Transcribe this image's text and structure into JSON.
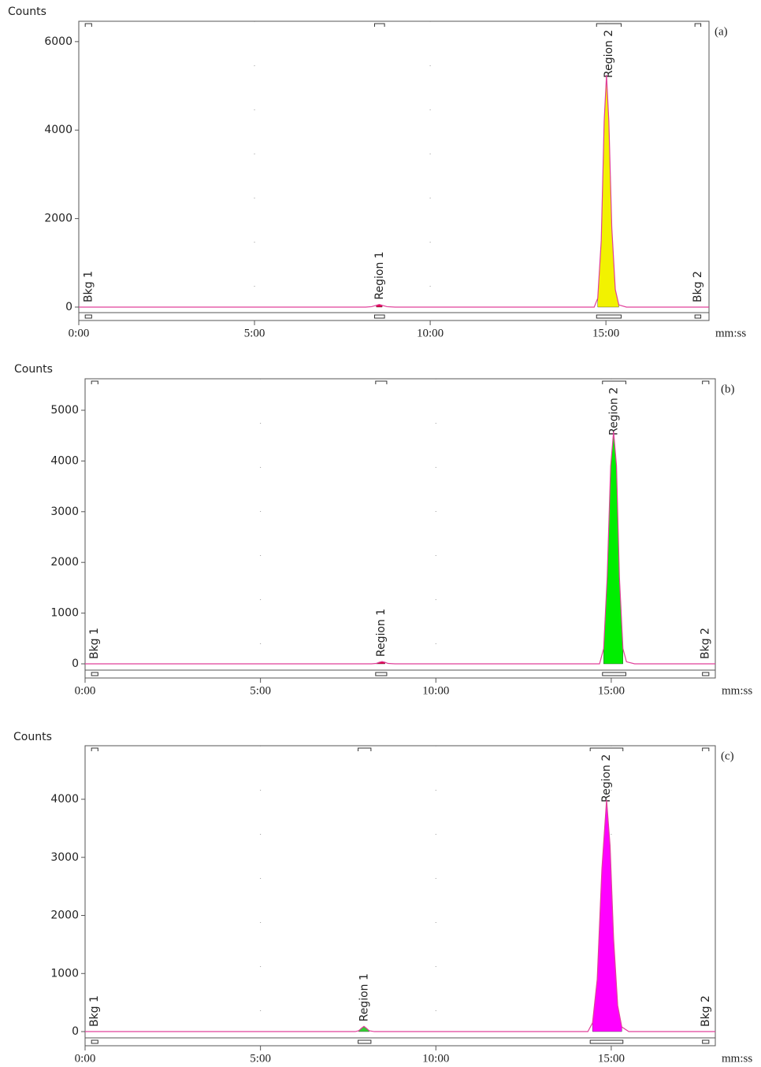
{
  "chart_data": [
    {
      "type": "area",
      "panel_label": "(a)",
      "ylabel": "Counts",
      "xlabel": "mm:ss",
      "x": [
        0,
        490,
        500,
        508,
        513,
        518,
        526,
        540,
        880,
        886,
        892,
        897,
        901,
        905,
        910,
        916,
        922,
        935,
        1076
      ],
      "values": [
        0,
        0,
        10,
        40,
        60,
        40,
        10,
        0,
        0,
        200,
        1500,
        4200,
        5250,
        4200,
        1800,
        400,
        50,
        0,
        0
      ],
      "line_color": "#e0409a",
      "xlim": [
        0,
        1076
      ],
      "xticks": [
        {
          "value": 0,
          "label": "0:00"
        },
        {
          "value": 300,
          "label": "5:00"
        },
        {
          "value": 600,
          "label": "10:00"
        },
        {
          "value": 900,
          "label": "15:00"
        }
      ],
      "ylim": [
        -125,
        6460
      ],
      "yticks": [
        0,
        2000,
        4000,
        6000
      ],
      "grid": true,
      "regions": [
        {
          "label": "Bkg 1",
          "start": 11,
          "end": 22
        },
        {
          "label": "Region 1",
          "start": 505,
          "end": 522,
          "color": "#e0004a"
        },
        {
          "label": "Region 2",
          "start": 884,
          "end": 926,
          "color": "#f2f200"
        },
        {
          "label": "Bkg 2",
          "start": 1052,
          "end": 1062
        }
      ]
    },
    {
      "type": "area",
      "panel_label": "(b)",
      "ylabel": "Counts",
      "xlabel": "mm:ss",
      "x": [
        0,
        490,
        498,
        503,
        508,
        513,
        518,
        530,
        880,
        887,
        893,
        899,
        904,
        909,
        914,
        920,
        926,
        940,
        1078
      ],
      "values": [
        0,
        0,
        8,
        30,
        45,
        30,
        8,
        0,
        0,
        300,
        1700,
        3900,
        4580,
        3900,
        1700,
        300,
        40,
        0,
        0
      ],
      "line_color": "#e0409a",
      "xlim": [
        0,
        1078
      ],
      "xticks": [
        {
          "value": 0,
          "label": "0:00"
        },
        {
          "value": 300,
          "label": "5:00"
        },
        {
          "value": 600,
          "label": "10:00"
        },
        {
          "value": 900,
          "label": "15:00"
        }
      ],
      "ylim": [
        -124,
        5621
      ],
      "yticks": [
        0,
        1000,
        2000,
        3000,
        4000,
        5000
      ],
      "grid": true,
      "regions": [
        {
          "label": "Bkg 1",
          "start": 11,
          "end": 22
        },
        {
          "label": "Region 1",
          "start": 497,
          "end": 516,
          "color": "#e0004a"
        },
        {
          "label": "Region 2",
          "start": 885,
          "end": 925,
          "color": "#00ee00"
        },
        {
          "label": "Bkg 2",
          "start": 1056,
          "end": 1067
        }
      ]
    },
    {
      "type": "area",
      "panel_label": "(c)",
      "ylabel": "Counts",
      "xlabel": "mm:ss",
      "x": [
        0,
        462,
        468,
        473,
        477,
        481,
        486,
        495,
        860,
        868,
        876,
        884,
        892,
        898,
        904,
        911,
        918,
        930,
        1078
      ],
      "values": [
        0,
        0,
        15,
        60,
        90,
        60,
        15,
        0,
        0,
        150,
        900,
        2800,
        3990,
        3200,
        1600,
        450,
        80,
        0,
        0
      ],
      "line_color": "#e0409a",
      "xlim": [
        0,
        1078
      ],
      "xticks": [
        {
          "value": 0,
          "label": "0:00"
        },
        {
          "value": 300,
          "label": "5:00"
        },
        {
          "value": 600,
          "label": "10:00"
        },
        {
          "value": 900,
          "label": "15:00"
        }
      ],
      "ylim": [
        -108,
        4922
      ],
      "yticks": [
        0,
        1000,
        2000,
        3000,
        4000
      ],
      "grid": true,
      "regions": [
        {
          "label": "Bkg 1",
          "start": 11,
          "end": 22
        },
        {
          "label": "Region 1",
          "start": 467,
          "end": 489,
          "color": "#33cc33"
        },
        {
          "label": "Region 2",
          "start": 864,
          "end": 920,
          "color": "#ff00ff"
        },
        {
          "label": "Bkg 2",
          "start": 1056,
          "end": 1067
        }
      ]
    }
  ]
}
